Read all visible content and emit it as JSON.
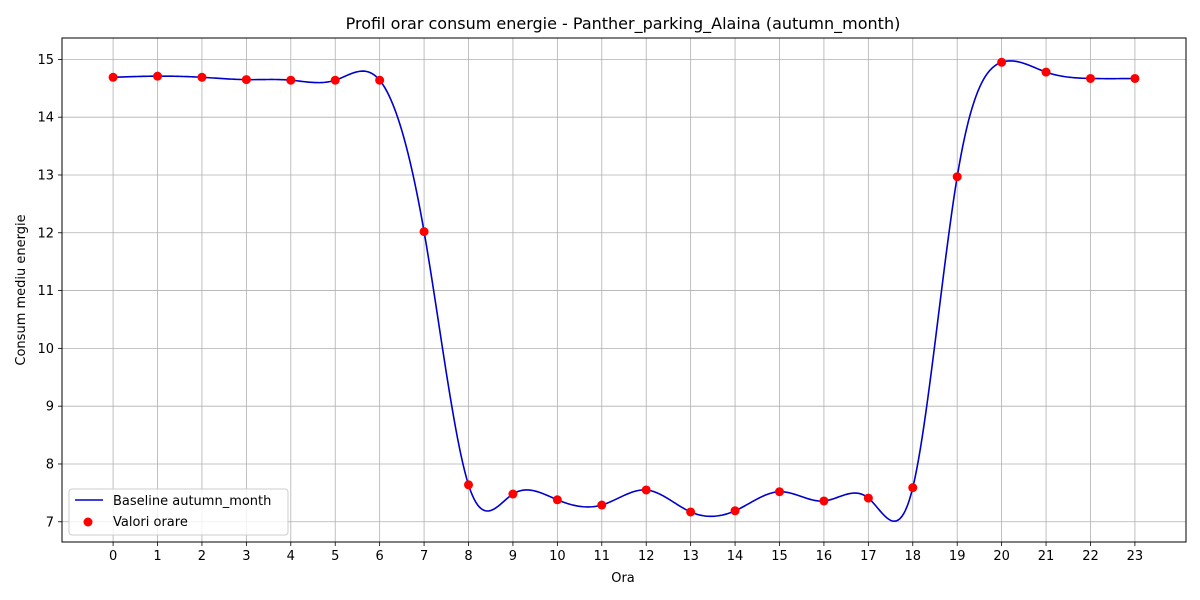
{
  "chart_data": {
    "type": "line",
    "title": "Profil orar consum energie - Panther_parking_Alaina (autumn_month)",
    "xlabel": "Ora",
    "ylabel": "Consum mediu energie",
    "x": [
      0,
      1,
      2,
      3,
      4,
      5,
      6,
      7,
      8,
      9,
      10,
      11,
      12,
      13,
      14,
      15,
      16,
      17,
      18,
      19,
      20,
      21,
      22,
      23
    ],
    "xlim": [
      -1.15,
      24.15
    ],
    "ylim": [
      6.65,
      15.37
    ],
    "x_ticks": [
      "0",
      "1",
      "2",
      "3",
      "4",
      "5",
      "6",
      "7",
      "8",
      "9",
      "10",
      "11",
      "12",
      "13",
      "14",
      "15",
      "16",
      "17",
      "18",
      "19",
      "20",
      "21",
      "22",
      "23"
    ],
    "y_ticks": [
      "7",
      "8",
      "9",
      "10",
      "11",
      "12",
      "13",
      "14",
      "15"
    ],
    "grid": true,
    "legend_position": "lower-left",
    "series": [
      {
        "name": "Baseline autumn_month",
        "kind": "line",
        "color": "#0000cc",
        "values": [
          14.69,
          14.71,
          14.69,
          14.65,
          14.64,
          14.64,
          14.64,
          12.02,
          7.64,
          7.48,
          7.38,
          7.29,
          7.55,
          7.17,
          7.19,
          7.52,
          7.36,
          7.41,
          7.59,
          12.97,
          14.95,
          14.78,
          14.67,
          14.67
        ]
      },
      {
        "name": "Valori orare",
        "kind": "scatter",
        "color": "#ff0000",
        "values": [
          14.69,
          14.71,
          14.69,
          14.65,
          14.64,
          14.64,
          14.64,
          12.02,
          7.64,
          7.48,
          7.38,
          7.29,
          7.55,
          7.17,
          7.19,
          7.52,
          7.36,
          7.41,
          7.59,
          12.97,
          14.95,
          14.78,
          14.67,
          14.67
        ]
      }
    ]
  }
}
